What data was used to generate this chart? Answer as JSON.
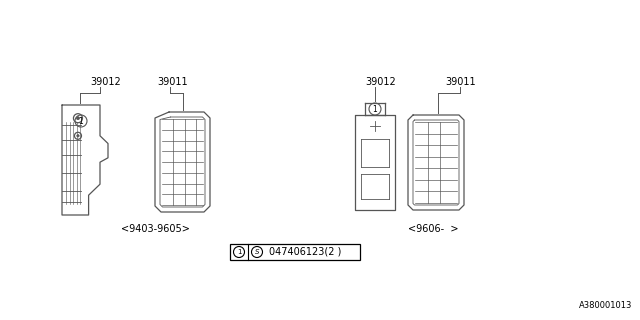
{
  "bg_color": "#ffffff",
  "line_color": "#555555",
  "text_color": "#000000",
  "part_label_left_1": "39012",
  "part_label_left_2": "39011",
  "part_label_right_1": "39012",
  "part_label_right_2": "39011",
  "date_left": "<9403-9605>",
  "date_right": "<9606-  >",
  "diagram_id": "A380001013",
  "figsize": [
    6.4,
    3.2
  ],
  "dpi": 100,
  "lw_main": 0.9,
  "lw_inner": 0.6,
  "font_size_label": 7.0,
  "font_size_date": 7.0,
  "font_size_id": 6.0,
  "font_size_box": 7.0
}
